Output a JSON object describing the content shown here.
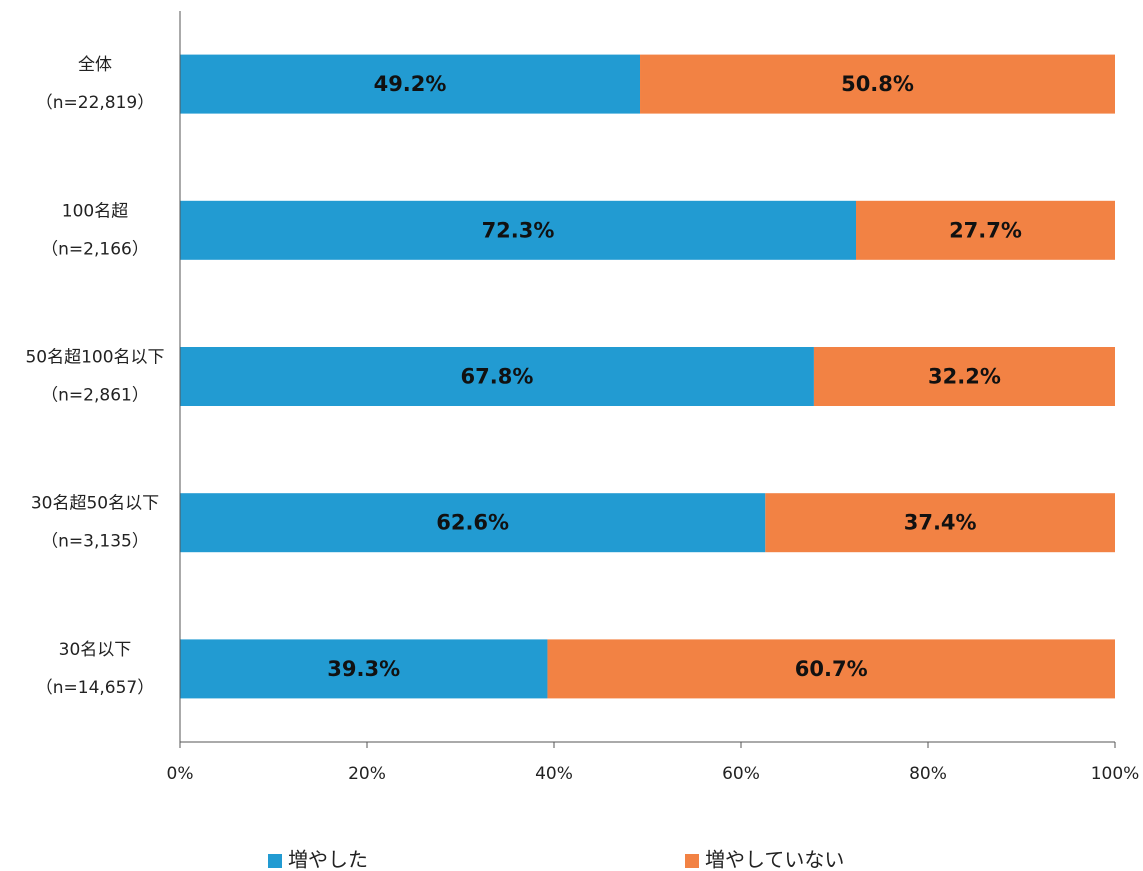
{
  "chart_data": {
    "type": "stacked_barh",
    "categories": [
      [
        "全体",
        "（n=22,819）"
      ],
      [
        "100名超",
        "（n=2,166）"
      ],
      [
        "50名超100名以下",
        "（n=2,861）"
      ],
      [
        "30名超50名以下",
        "（n=3,135）"
      ],
      [
        "30名以下",
        "（n=14,657）"
      ]
    ],
    "series": [
      {
        "name": "増やした",
        "color": "#229bd2",
        "values": [
          49.2,
          72.3,
          67.8,
          62.6,
          39.3
        ],
        "value_labels": [
          "49.2%",
          "72.3%",
          "67.8%",
          "62.6%",
          "39.3%"
        ]
      },
      {
        "name": "増やしていない",
        "color": "#f28244",
        "values": [
          50.8,
          27.7,
          32.2,
          37.4,
          60.7
        ],
        "value_labels": [
          "50.8%",
          "27.7%",
          "32.2%",
          "37.4%",
          "60.7%"
        ]
      }
    ],
    "xlim": [
      0,
      100
    ],
    "xticks": [
      {
        "value": 0,
        "label": "0%"
      },
      {
        "value": 20,
        "label": "20%"
      },
      {
        "value": 40,
        "label": "40%"
      },
      {
        "value": 60,
        "label": "60%"
      },
      {
        "value": 80,
        "label": "80%"
      },
      {
        "value": 100,
        "label": "100%"
      }
    ],
    "legend": "bottom"
  }
}
